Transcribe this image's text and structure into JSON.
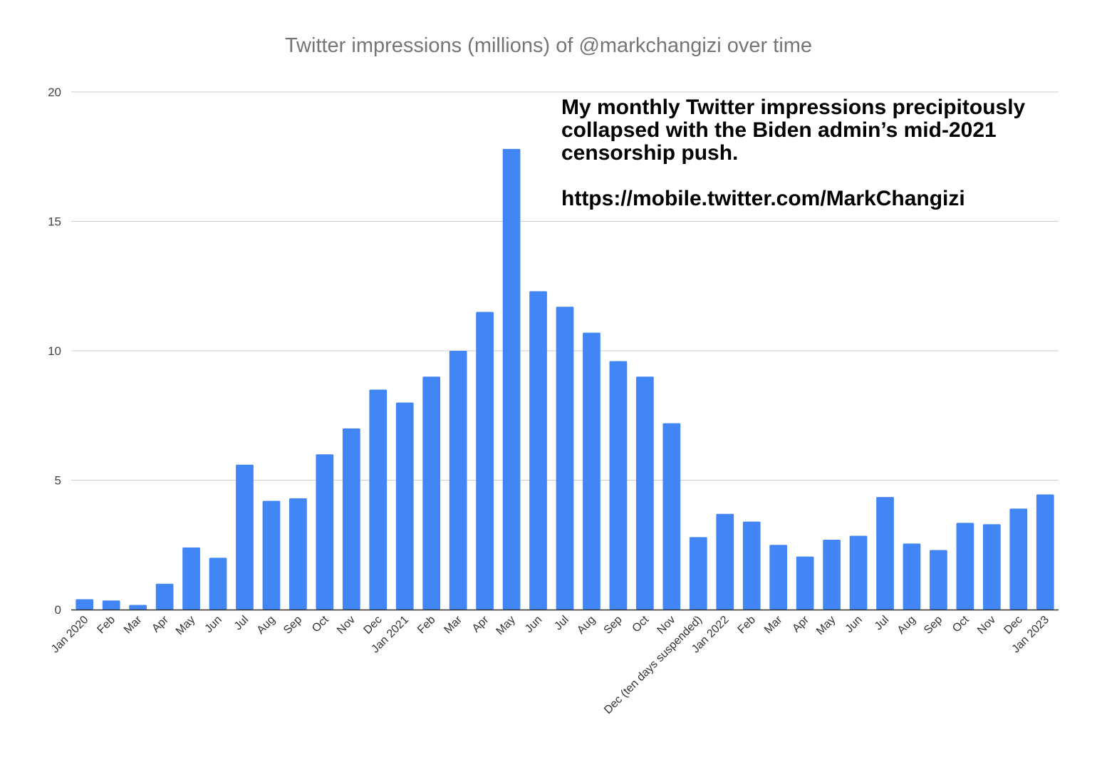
{
  "chart_data": {
    "type": "bar",
    "title": "Twitter impressions (millions) of @markchangizi over time",
    "annotation": {
      "text": "My monthly Twitter impressions precipitously collapsed with the Biden admin’s mid-2021 censorship push.",
      "url": "https://mobile.twitter.com/MarkChangizi"
    },
    "categories": [
      "Jan 2020",
      "Feb",
      "Mar",
      "Apr",
      "May",
      "Jun",
      "Jul",
      "Aug",
      "Sep",
      "Oct",
      "Nov",
      "Dec",
      "Jan 2021",
      "Feb",
      "Mar",
      "Apr",
      "May",
      "Jun",
      "Jul",
      "Aug",
      "Sep",
      "Oct",
      "Nov",
      "Dec (ten days suspended)",
      "Jan 2022",
      "Feb",
      "Mar",
      "Apr",
      "May",
      "Jun",
      "Jul",
      "Aug",
      "Sep",
      "Oct",
      "Nov",
      "Dec",
      "Jan 2023"
    ],
    "values": [
      0.4,
      0.35,
      0.18,
      1.0,
      2.4,
      2.0,
      5.6,
      4.2,
      4.3,
      6.0,
      7.0,
      8.5,
      8.0,
      9.0,
      10.0,
      11.5,
      17.8,
      12.3,
      11.7,
      10.7,
      9.6,
      9.0,
      7.2,
      2.8,
      3.7,
      3.4,
      2.5,
      2.05,
      2.7,
      2.85,
      4.35,
      2.55,
      2.3,
      3.35,
      3.3,
      3.9,
      4.45
    ],
    "ylim": [
      0,
      20
    ],
    "yticks": [
      0,
      5,
      10,
      15,
      20
    ],
    "xlabel": "",
    "ylabel": "",
    "grid": true,
    "legend": "none",
    "bar_color": "#4285F4",
    "gridline_color": "#CCCCCC",
    "axis_color": "#333333",
    "title_color": "#757575"
  }
}
